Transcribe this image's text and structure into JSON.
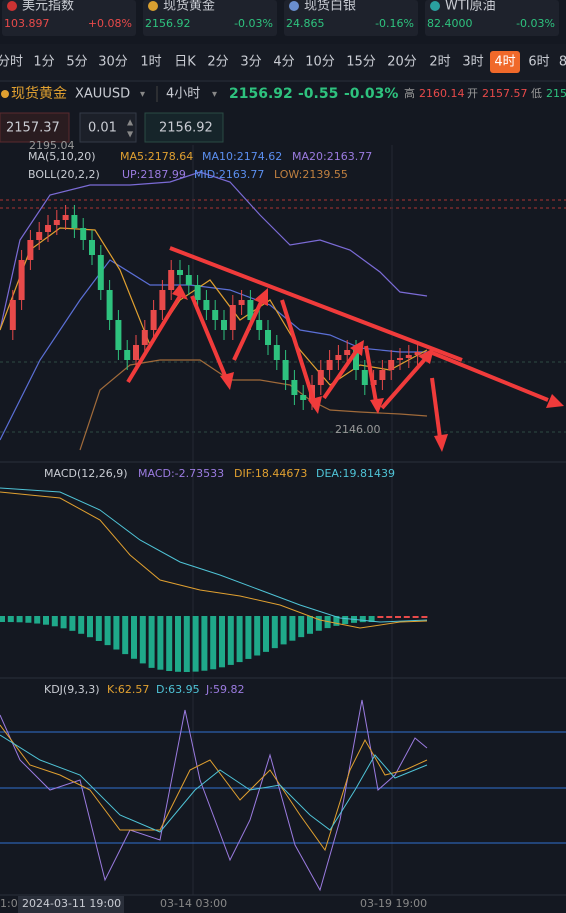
{
  "tickers": [
    {
      "name": "美元指数",
      "price": "103.897",
      "change": "+0.08%"
    },
    {
      "name": "现货黄金",
      "price": "2156.92",
      "change": "-0.03%"
    },
    {
      "name": "现货白银",
      "price": "24.865",
      "change": "-0.16%"
    },
    {
      "name": "WTI原油",
      "price": "82.4000",
      "change": "-0.03%"
    }
  ],
  "timeframes": [
    "分时",
    "1分",
    "5分",
    "30分",
    "1时",
    "日K",
    "2分",
    "3分",
    "4分",
    "10分",
    "15分",
    "20分",
    "2时",
    "3时",
    "4时",
    "6时",
    "8"
  ],
  "active_timeframe": 14,
  "header": {
    "name": "现货黄金",
    "symbol": "XAUUSD",
    "period": "4小时",
    "price": "2156.92",
    "change": "-0.55",
    "percent": "-0.03%",
    "high_label": "高",
    "high": "2160.14",
    "open_label": "开",
    "open": "2157.57",
    "low_label": "低",
    "low": "215"
  },
  "inputs": [
    "2157.37",
    "0.01",
    "2156.92"
  ],
  "main": {
    "ma": {
      "title": "MA(5,10,20)",
      "items": [
        "MA5:2178.64",
        "MA10:2174.62",
        "MA20:2163.77"
      ]
    },
    "boll": {
      "title": "BOLL(20,2,2)",
      "items": [
        "UP:2187.99",
        "MID:2163.77",
        "LOW:2139.55"
      ]
    },
    "max_label": "2195.04",
    "min_label": "2146.00"
  },
  "macd": {
    "title": "MACD(12,26,9)",
    "items": [
      "MACD:-2.73533",
      "DIF:18.44673",
      "DEA:19.81439"
    ]
  },
  "kdj": {
    "title": "KDJ(9,3,3)",
    "items": [
      "K:62.57",
      "D:63.95",
      "J:59.82"
    ]
  },
  "dates": [
    "1:0",
    "2024-03-11 19:00",
    "03-14 03:00",
    "03-19 19:00"
  ]
}
